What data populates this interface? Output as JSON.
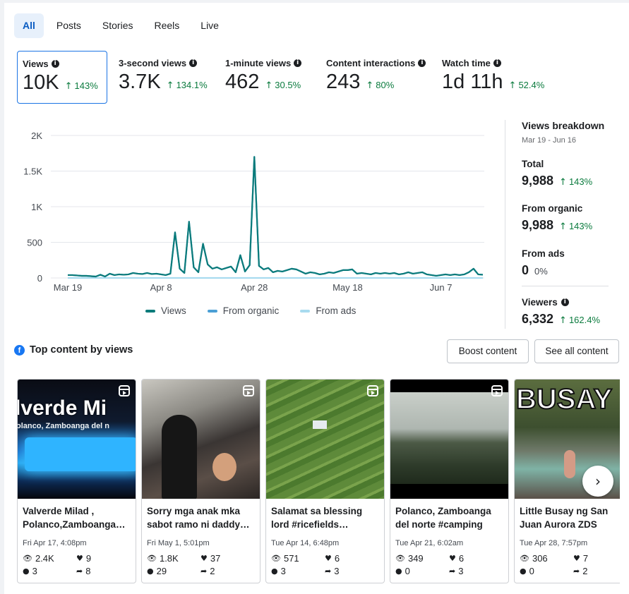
{
  "tabs": [
    "All",
    "Posts",
    "Stories",
    "Reels",
    "Live"
  ],
  "metrics": [
    {
      "label": "Views",
      "value": "10K",
      "change": "143%"
    },
    {
      "label": "3-second views",
      "value": "3.7K",
      "change": "134.1%"
    },
    {
      "label": "1-minute views",
      "value": "462",
      "change": "30.5%"
    },
    {
      "label": "Content interactions",
      "value": "243",
      "change": "80%"
    },
    {
      "label": "Watch time",
      "value": "1d 11h",
      "change": "52.4%"
    }
  ],
  "chart_data": {
    "type": "line",
    "x_ticks": [
      "Mar 19",
      "Apr 8",
      "Apr 28",
      "May 18",
      "Jun 7"
    ],
    "y_ticks": [
      "0",
      "500",
      "1K",
      "1.5K",
      "2K"
    ],
    "ylim": [
      0,
      2000
    ],
    "x": [
      "Mar 19",
      "Mar 20",
      "Mar 21",
      "Mar 22",
      "Mar 23",
      "Mar 24",
      "Mar 25",
      "Mar 26",
      "Mar 27",
      "Mar 28",
      "Mar 29",
      "Mar 30",
      "Mar 31",
      "Apr 1",
      "Apr 2",
      "Apr 3",
      "Apr 4",
      "Apr 5",
      "Apr 6",
      "Apr 7",
      "Apr 8",
      "Apr 9",
      "Apr 10",
      "Apr 11",
      "Apr 12",
      "Apr 13",
      "Apr 14",
      "Apr 15",
      "Apr 16",
      "Apr 17",
      "Apr 18",
      "Apr 19",
      "Apr 20",
      "Apr 21",
      "Apr 22",
      "Apr 23",
      "Apr 24",
      "Apr 25",
      "Apr 26",
      "Apr 27",
      "Apr 28",
      "Apr 29",
      "Apr 30",
      "May 1",
      "May 2",
      "May 3",
      "May 4",
      "May 5",
      "May 6",
      "May 7",
      "May 8",
      "May 9",
      "May 10",
      "May 11",
      "May 12",
      "May 13",
      "May 14",
      "May 15",
      "May 16",
      "May 17",
      "May 18",
      "May 19",
      "May 20",
      "May 21",
      "May 22",
      "May 23",
      "May 24",
      "May 25",
      "May 26",
      "May 27",
      "May 28",
      "May 29",
      "May 30",
      "May 31",
      "Jun 1",
      "Jun 2",
      "Jun 3",
      "Jun 4",
      "Jun 5",
      "Jun 6",
      "Jun 7",
      "Jun 8",
      "Jun 9",
      "Jun 10",
      "Jun 11",
      "Jun 12",
      "Jun 13",
      "Jun 14",
      "Jun 15",
      "Jun 16"
    ],
    "series": [
      {
        "name": "Views",
        "color": "#0b7b7a",
        "values": [
          40,
          40,
          35,
          30,
          30,
          25,
          20,
          45,
          20,
          60,
          40,
          50,
          45,
          50,
          70,
          60,
          55,
          70,
          55,
          60,
          50,
          40,
          60,
          640,
          130,
          70,
          790,
          150,
          80,
          480,
          190,
          130,
          150,
          120,
          140,
          160,
          80,
          320,
          90,
          180,
          1700,
          170,
          120,
          140,
          80,
          100,
          90,
          110,
          130,
          120,
          90,
          60,
          80,
          70,
          50,
          60,
          80,
          70,
          90,
          110,
          110,
          120,
          60,
          70,
          60,
          50,
          70,
          60,
          70,
          60,
          70,
          50,
          60,
          80,
          60,
          70,
          80,
          50,
          40,
          30,
          40,
          50,
          40,
          50,
          40,
          50,
          80,
          130,
          50,
          45
        ]
      },
      {
        "name": "From organic",
        "color": "#4b9fd5",
        "values": [
          40,
          40,
          35,
          30,
          30,
          25,
          20,
          45,
          20,
          60,
          40,
          50,
          45,
          50,
          70,
          60,
          55,
          70,
          55,
          60,
          50,
          40,
          60,
          640,
          130,
          70,
          790,
          150,
          80,
          480,
          190,
          130,
          150,
          120,
          140,
          160,
          80,
          320,
          90,
          180,
          1700,
          170,
          120,
          140,
          80,
          100,
          90,
          110,
          130,
          120,
          90,
          60,
          80,
          70,
          50,
          60,
          80,
          70,
          90,
          110,
          110,
          120,
          60,
          70,
          60,
          50,
          70,
          60,
          70,
          60,
          70,
          50,
          60,
          80,
          60,
          70,
          80,
          50,
          40,
          30,
          40,
          50,
          40,
          50,
          40,
          50,
          80,
          130,
          50,
          45
        ]
      },
      {
        "name": "From ads",
        "color": "#a8dbef",
        "values": [
          0,
          0,
          0,
          0,
          0,
          0,
          0,
          0,
          0,
          0,
          0,
          0,
          0,
          0,
          0,
          0,
          0,
          0,
          0,
          0,
          0,
          0,
          0,
          0,
          0,
          0,
          0,
          0,
          0,
          0,
          0,
          0,
          0,
          0,
          0,
          0,
          0,
          0,
          0,
          0,
          0,
          0,
          0,
          0,
          0,
          0,
          0,
          0,
          0,
          0,
          0,
          0,
          0,
          0,
          0,
          0,
          0,
          0,
          0,
          0,
          0,
          0,
          0,
          0,
          0,
          0,
          0,
          0,
          0,
          0,
          0,
          0,
          0,
          0,
          0,
          0,
          0,
          0,
          0,
          0,
          0,
          0,
          0,
          0,
          0,
          0,
          0,
          0,
          0,
          0
        ]
      }
    ]
  },
  "legend": [
    {
      "label": "Views",
      "color": "#0b7b7a"
    },
    {
      "label": "From organic",
      "color": "#4b9fd5"
    },
    {
      "label": "From ads",
      "color": "#a8dbef"
    }
  ],
  "breakdown": {
    "title": "Views breakdown",
    "date_range": "Mar 19 - Jun 16",
    "items": [
      {
        "label": "Total",
        "value": "9,988",
        "change": "143%"
      },
      {
        "label": "From organic",
        "value": "9,988",
        "change": "143%"
      },
      {
        "label": "From ads",
        "value": "0",
        "pct": "0%"
      },
      {
        "label": "Viewers",
        "value": "6,332",
        "change": "162.4%"
      }
    ]
  },
  "top_content": {
    "title": "Top content by views",
    "boost_label": "Boost content",
    "see_all_label": "See all content",
    "next_icon": "chevron-right-icon",
    "cards": [
      {
        "title": "Valverde Milad , Polanco,Zamboanga…",
        "date": "Fri Apr 17, 4:08pm",
        "views": "2.4K",
        "reactions": "9",
        "comments": "3",
        "shares": "8",
        "thumb_text": "lverde Mi",
        "thumb_subtext": "olanco, Zamboanga del n"
      },
      {
        "title": "Sorry mga anak mka sabot ramo ni daddy…",
        "date": "Fri May 1, 5:01pm",
        "views": "1.8K",
        "reactions": "37",
        "comments": "29",
        "shares": "2"
      },
      {
        "title": "Salamat sa blessing lord #ricefields…",
        "date": "Tue Apr 14, 6:48pm",
        "views": "571",
        "reactions": "6",
        "comments": "3",
        "shares": "3"
      },
      {
        "title": "Polanco, Zamboanga del norte #camping",
        "date": "Tue Apr 21, 6:02am",
        "views": "349",
        "reactions": "6",
        "comments": "0",
        "shares": "3"
      },
      {
        "title": "Little Busay ng San Juan Aurora ZDS",
        "date": "Tue Apr 28, 7:57pm",
        "views": "306",
        "reactions": "7",
        "comments": "0",
        "shares": "2",
        "thumb_text": "BUSAY"
      }
    ]
  }
}
